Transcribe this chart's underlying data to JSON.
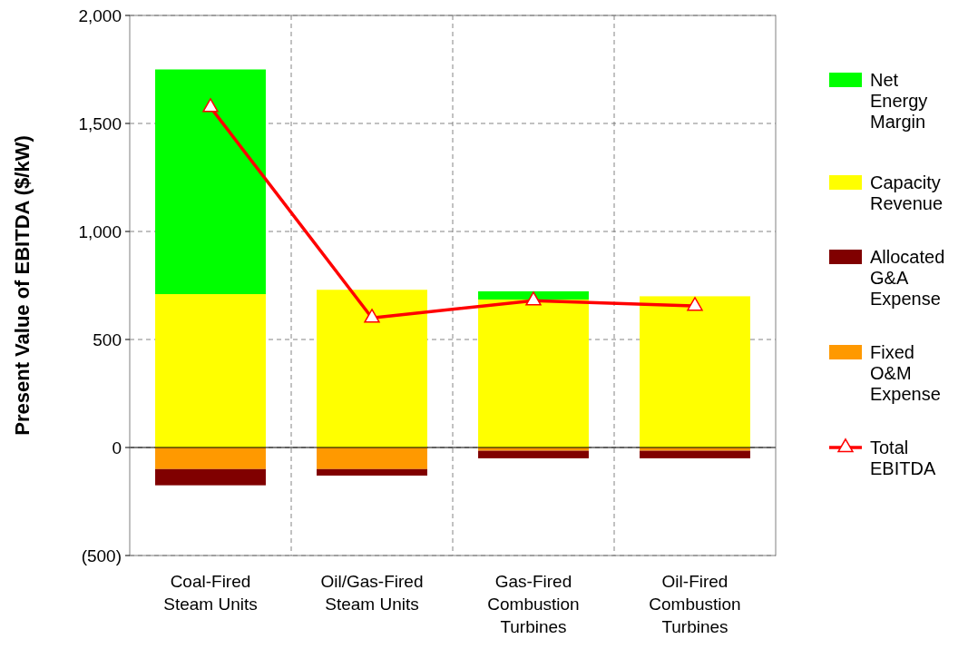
{
  "chart_data": {
    "type": "bar",
    "stacked": true,
    "ylabel": "Present Value of EBITDA ($/kW)",
    "categories": [
      "Coal-Fired Steam Units",
      "Oil/Gas-Fired Steam Units",
      "Gas-Fired Combustion Turbines",
      "Oil-Fired Combustion Turbines"
    ],
    "series": [
      {
        "name": "Fixed O&M Expense",
        "color": "#ff9900",
        "values": [
          -100,
          -100,
          -15,
          -15
        ]
      },
      {
        "name": "Allocated G&A Expense",
        "color": "#800000",
        "values": [
          -75,
          -30,
          -35,
          -35
        ]
      },
      {
        "name": "Capacity Revenue",
        "color": "#ffff00",
        "values": [
          710,
          730,
          685,
          700
        ]
      },
      {
        "name": "Net Energy Margin",
        "color": "#00ff00",
        "values": [
          1040,
          0,
          38,
          0
        ]
      },
      {
        "name": "Total EBITDA",
        "type": "line",
        "color": "#ff0000",
        "marker": "triangle",
        "values": [
          1575,
          600,
          680,
          655
        ]
      }
    ],
    "ylim": [
      -500,
      2000
    ],
    "yticks": [
      {
        "value": -500,
        "label": "(500)"
      },
      0,
      500,
      {
        "value": 1000,
        "label": "1,000"
      },
      {
        "value": 1500,
        "label": "1,500"
      },
      {
        "value": 2000,
        "label": "2,000"
      }
    ],
    "grid": true,
    "legend": "right"
  }
}
